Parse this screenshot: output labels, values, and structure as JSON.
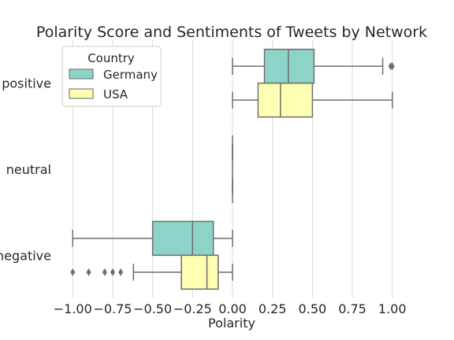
{
  "chart_data": {
    "type": "boxplot",
    "orientation": "horizontal",
    "title": "Polarity Score and Sentiments of Tweets by Network",
    "xlabel": "Polarity",
    "ylabel": "",
    "xlim": [
      -1.1,
      1.1
    ],
    "x_ticks": [
      -1.0,
      -0.75,
      -0.5,
      -0.25,
      0.0,
      0.25,
      0.5,
      0.75,
      1.0
    ],
    "x_tick_labels": [
      "−1.00",
      "−0.75",
      "−0.50",
      "−0.25",
      "0.00",
      "0.25",
      "0.50",
      "0.75",
      "1.00"
    ],
    "categories": [
      "positive",
      "neutral",
      "negative"
    ],
    "grid": "vertical",
    "legend": {
      "title": "Country",
      "placement": "top-left"
    },
    "series": [
      {
        "name": "Germany",
        "color": "#8dd3c7",
        "boxes": [
          {
            "category": "positive",
            "whisker_low": 0.0,
            "q1": 0.2,
            "median": 0.35,
            "q3": 0.51,
            "whisker_high": 0.94,
            "outliers": [
              0.99,
              1.0
            ]
          },
          {
            "category": "neutral",
            "whisker_low": 0.0,
            "q1": 0.0,
            "median": 0.0,
            "q3": 0.0,
            "whisker_high": 0.0,
            "outliers": []
          },
          {
            "category": "negative",
            "whisker_low": -1.0,
            "q1": -0.5,
            "median": -0.25,
            "q3": -0.12,
            "whisker_high": 0.0,
            "outliers": []
          }
        ]
      },
      {
        "name": "USA",
        "color": "#ffffb3",
        "boxes": [
          {
            "category": "positive",
            "whisker_low": 0.0,
            "q1": 0.16,
            "median": 0.3,
            "q3": 0.5,
            "whisker_high": 1.0,
            "outliers": []
          },
          {
            "category": "neutral",
            "whisker_low": 0.0,
            "q1": 0.0,
            "median": 0.0,
            "q3": 0.0,
            "whisker_high": 0.0,
            "outliers": []
          },
          {
            "category": "negative",
            "whisker_low": -0.62,
            "q1": -0.32,
            "median": -0.16,
            "q3": -0.09,
            "whisker_high": 0.0,
            "outliers": [
              -1.0,
              -0.9,
              -0.8,
              -0.75,
              -0.7
            ]
          }
        ]
      }
    ]
  }
}
